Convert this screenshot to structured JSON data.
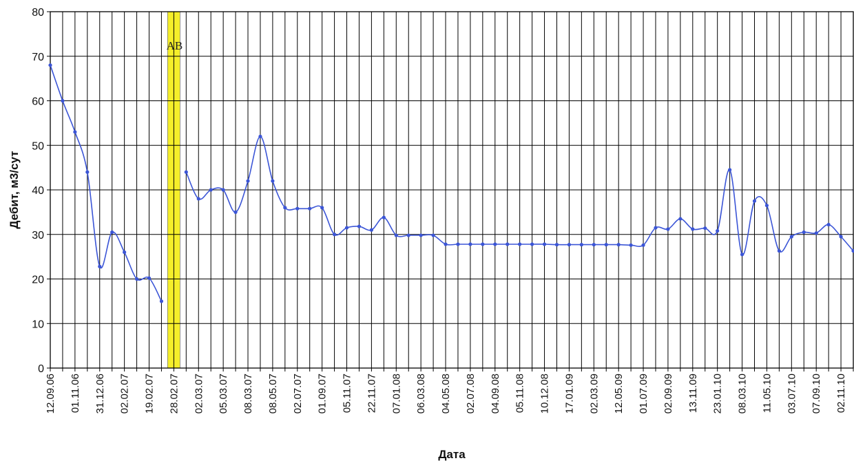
{
  "chart_data": {
    "type": "line",
    "xlabel": "Дата",
    "ylabel": "Дебит, м3/сут",
    "ylim": [
      0,
      80
    ],
    "yticks": [
      0,
      10,
      20,
      30,
      40,
      50,
      60,
      70,
      80
    ],
    "grid": true,
    "categories": [
      "12.09.06",
      "",
      "01.11.06",
      "",
      "31.12.06",
      "",
      "02.02.07",
      "",
      "19.02.07",
      "",
      "28.02.07",
      "",
      "02.03.07",
      "",
      "05.03.07",
      "",
      "08.03.07",
      "",
      "08.05.07",
      "",
      "02.07.07",
      "",
      "01.09.07",
      "",
      "05.11.07",
      "",
      "22.11.07",
      "",
      "07.01.08",
      "",
      "06.03.08",
      "",
      "04.05.08",
      "",
      "02.07.08",
      "",
      "04.09.08",
      "",
      "05.11.08",
      "",
      "10.12.08",
      "",
      "17.01.09",
      "",
      "02.03.09",
      "",
      "12.05.09",
      "",
      "01.07.09",
      "",
      "02.09.09",
      "",
      "13.11.09",
      "",
      "23.01.10",
      "",
      "08.03.10",
      "",
      "11.05.10",
      "",
      "03.07.10",
      "",
      "07.09.10",
      "",
      "02.11.10",
      ""
    ],
    "annotation": {
      "text": "АВ",
      "category_index": 10,
      "color": "#f5ee2a"
    },
    "series": [
      {
        "color": "#3b55d6",
        "points": [
          [
            0,
            68
          ],
          [
            1,
            60
          ],
          [
            2,
            53
          ],
          [
            3,
            44
          ],
          [
            4,
            22.8
          ],
          [
            5,
            30.5
          ],
          [
            6,
            26
          ],
          [
            7,
            20
          ],
          [
            8,
            20.2
          ],
          [
            9,
            15
          ],
          [
            11,
            44
          ],
          [
            12,
            38
          ],
          [
            13,
            40
          ],
          [
            14,
            40
          ],
          [
            15,
            35
          ],
          [
            16,
            42
          ],
          [
            17,
            52
          ],
          [
            18,
            42
          ],
          [
            19,
            36
          ],
          [
            20,
            35.8
          ],
          [
            21,
            35.8
          ],
          [
            22,
            36
          ],
          [
            23,
            30
          ],
          [
            24,
            31.5
          ],
          [
            25,
            31.8
          ],
          [
            26,
            31
          ],
          [
            27,
            33.8
          ],
          [
            28,
            29.8
          ],
          [
            29,
            29.8
          ],
          [
            30,
            29.8
          ],
          [
            31,
            29.8
          ],
          [
            32,
            27.8
          ],
          [
            33,
            27.8
          ],
          [
            34,
            27.8
          ],
          [
            35,
            27.8
          ],
          [
            36,
            27.8
          ],
          [
            37,
            27.8
          ],
          [
            38,
            27.8
          ],
          [
            39,
            27.8
          ],
          [
            40,
            27.8
          ],
          [
            41,
            27.7
          ],
          [
            42,
            27.7
          ],
          [
            43,
            27.7
          ],
          [
            44,
            27.7
          ],
          [
            45,
            27.7
          ],
          [
            46,
            27.7
          ],
          [
            47,
            27.6
          ],
          [
            48,
            27.6
          ],
          [
            49,
            31.5
          ],
          [
            50,
            31.2
          ],
          [
            51,
            33.5
          ],
          [
            52,
            31.2
          ],
          [
            53,
            31.4
          ],
          [
            54,
            30.8
          ],
          [
            55,
            44.5
          ],
          [
            56,
            25.5
          ],
          [
            57,
            37.5
          ],
          [
            58,
            36.5
          ],
          [
            59,
            26.3
          ],
          [
            60,
            29.5
          ],
          [
            61,
            30.5
          ],
          [
            62,
            30.3
          ],
          [
            63,
            32.2
          ],
          [
            64,
            29.5
          ],
          [
            65,
            26.3
          ]
        ]
      }
    ]
  }
}
